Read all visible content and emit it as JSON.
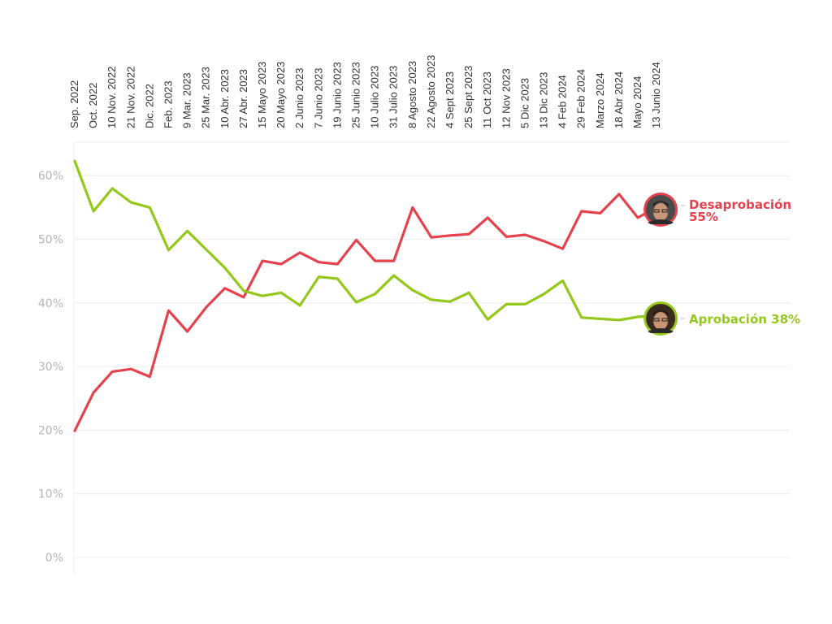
{
  "chart_data": {
    "type": "line",
    "title": "",
    "xlabel": "",
    "ylabel": "",
    "ylim": [
      0,
      60
    ],
    "yticks": [
      "0%",
      "10%",
      "20%",
      "30%",
      "40%",
      "50%",
      "60%"
    ],
    "grid": true,
    "legend_position": "inline-right",
    "categories": [
      "Sep. 2022",
      "Oct. 2022",
      "10 Nov. 2022",
      "21 Nov. 2022",
      "Dic. 2022",
      "Feb. 2023",
      "9 Mar. 2023",
      "25 Mar. 2023",
      "10 Abr. 2023",
      "27 Abr. 2023",
      "15 Mayo 2023",
      "20 Mayo 2023",
      "2 Junio 2023",
      "7 Junio 2023",
      "19 Junio 2023",
      "25 Junio 2023",
      "10 Julio 2023",
      "31 Julio 2023",
      "8 Agosto 2023",
      "22 Agosto 2023",
      "4 Sept 2023",
      "25 Sept 2023",
      "11 Oct 2023",
      "12 Nov 2023",
      "5 Dic 2023",
      "13 Dic 2023",
      "4 Feb 2024",
      "29 Feb 2024",
      "Marzo 2024",
      "18 Abr 2024",
      "Mayo 2024",
      "13 Junio 2024"
    ],
    "series": [
      {
        "name": "Desaprobación",
        "color": "#e5424d",
        "end_label": "Desaprobación",
        "end_value_label": "55%",
        "values": [
          19.9,
          25.9,
          29.2,
          29.6,
          28.4,
          38.8,
          35.5,
          39.3,
          42.3,
          40.9,
          46.6,
          46.1,
          47.9,
          46.4,
          46.1,
          49.9,
          46.6,
          46.6,
          55.0,
          50.3,
          50.6,
          50.8,
          53.4,
          50.4,
          50.7,
          49.7,
          48.5,
          54.4,
          54.1,
          57.1,
          53.4,
          55
        ]
      },
      {
        "name": "Aprobación",
        "color": "#94c81a",
        "end_label": "Aprobación 38%",
        "end_value_label": "",
        "values": [
          62.3,
          54.4,
          58.0,
          55.8,
          55.0,
          48.3,
          51.3,
          48.4,
          45.5,
          41.9,
          41.1,
          41.6,
          39.6,
          44.1,
          43.8,
          40.1,
          41.4,
          44.3,
          42.0,
          40.5,
          40.2,
          41.6,
          37.4,
          39.8,
          39.8,
          41.4,
          43.5,
          37.7,
          37.5,
          37.3,
          37.8,
          38
        ]
      }
    ]
  },
  "labels": {
    "disapproval_name": "Desaprobación",
    "disapproval_value": "55%",
    "approval_text": "Aprobación 38%"
  },
  "icons": {
    "disapproval_marker": "portrait-avatar-icon",
    "approval_marker": "portrait-avatar-icon"
  }
}
